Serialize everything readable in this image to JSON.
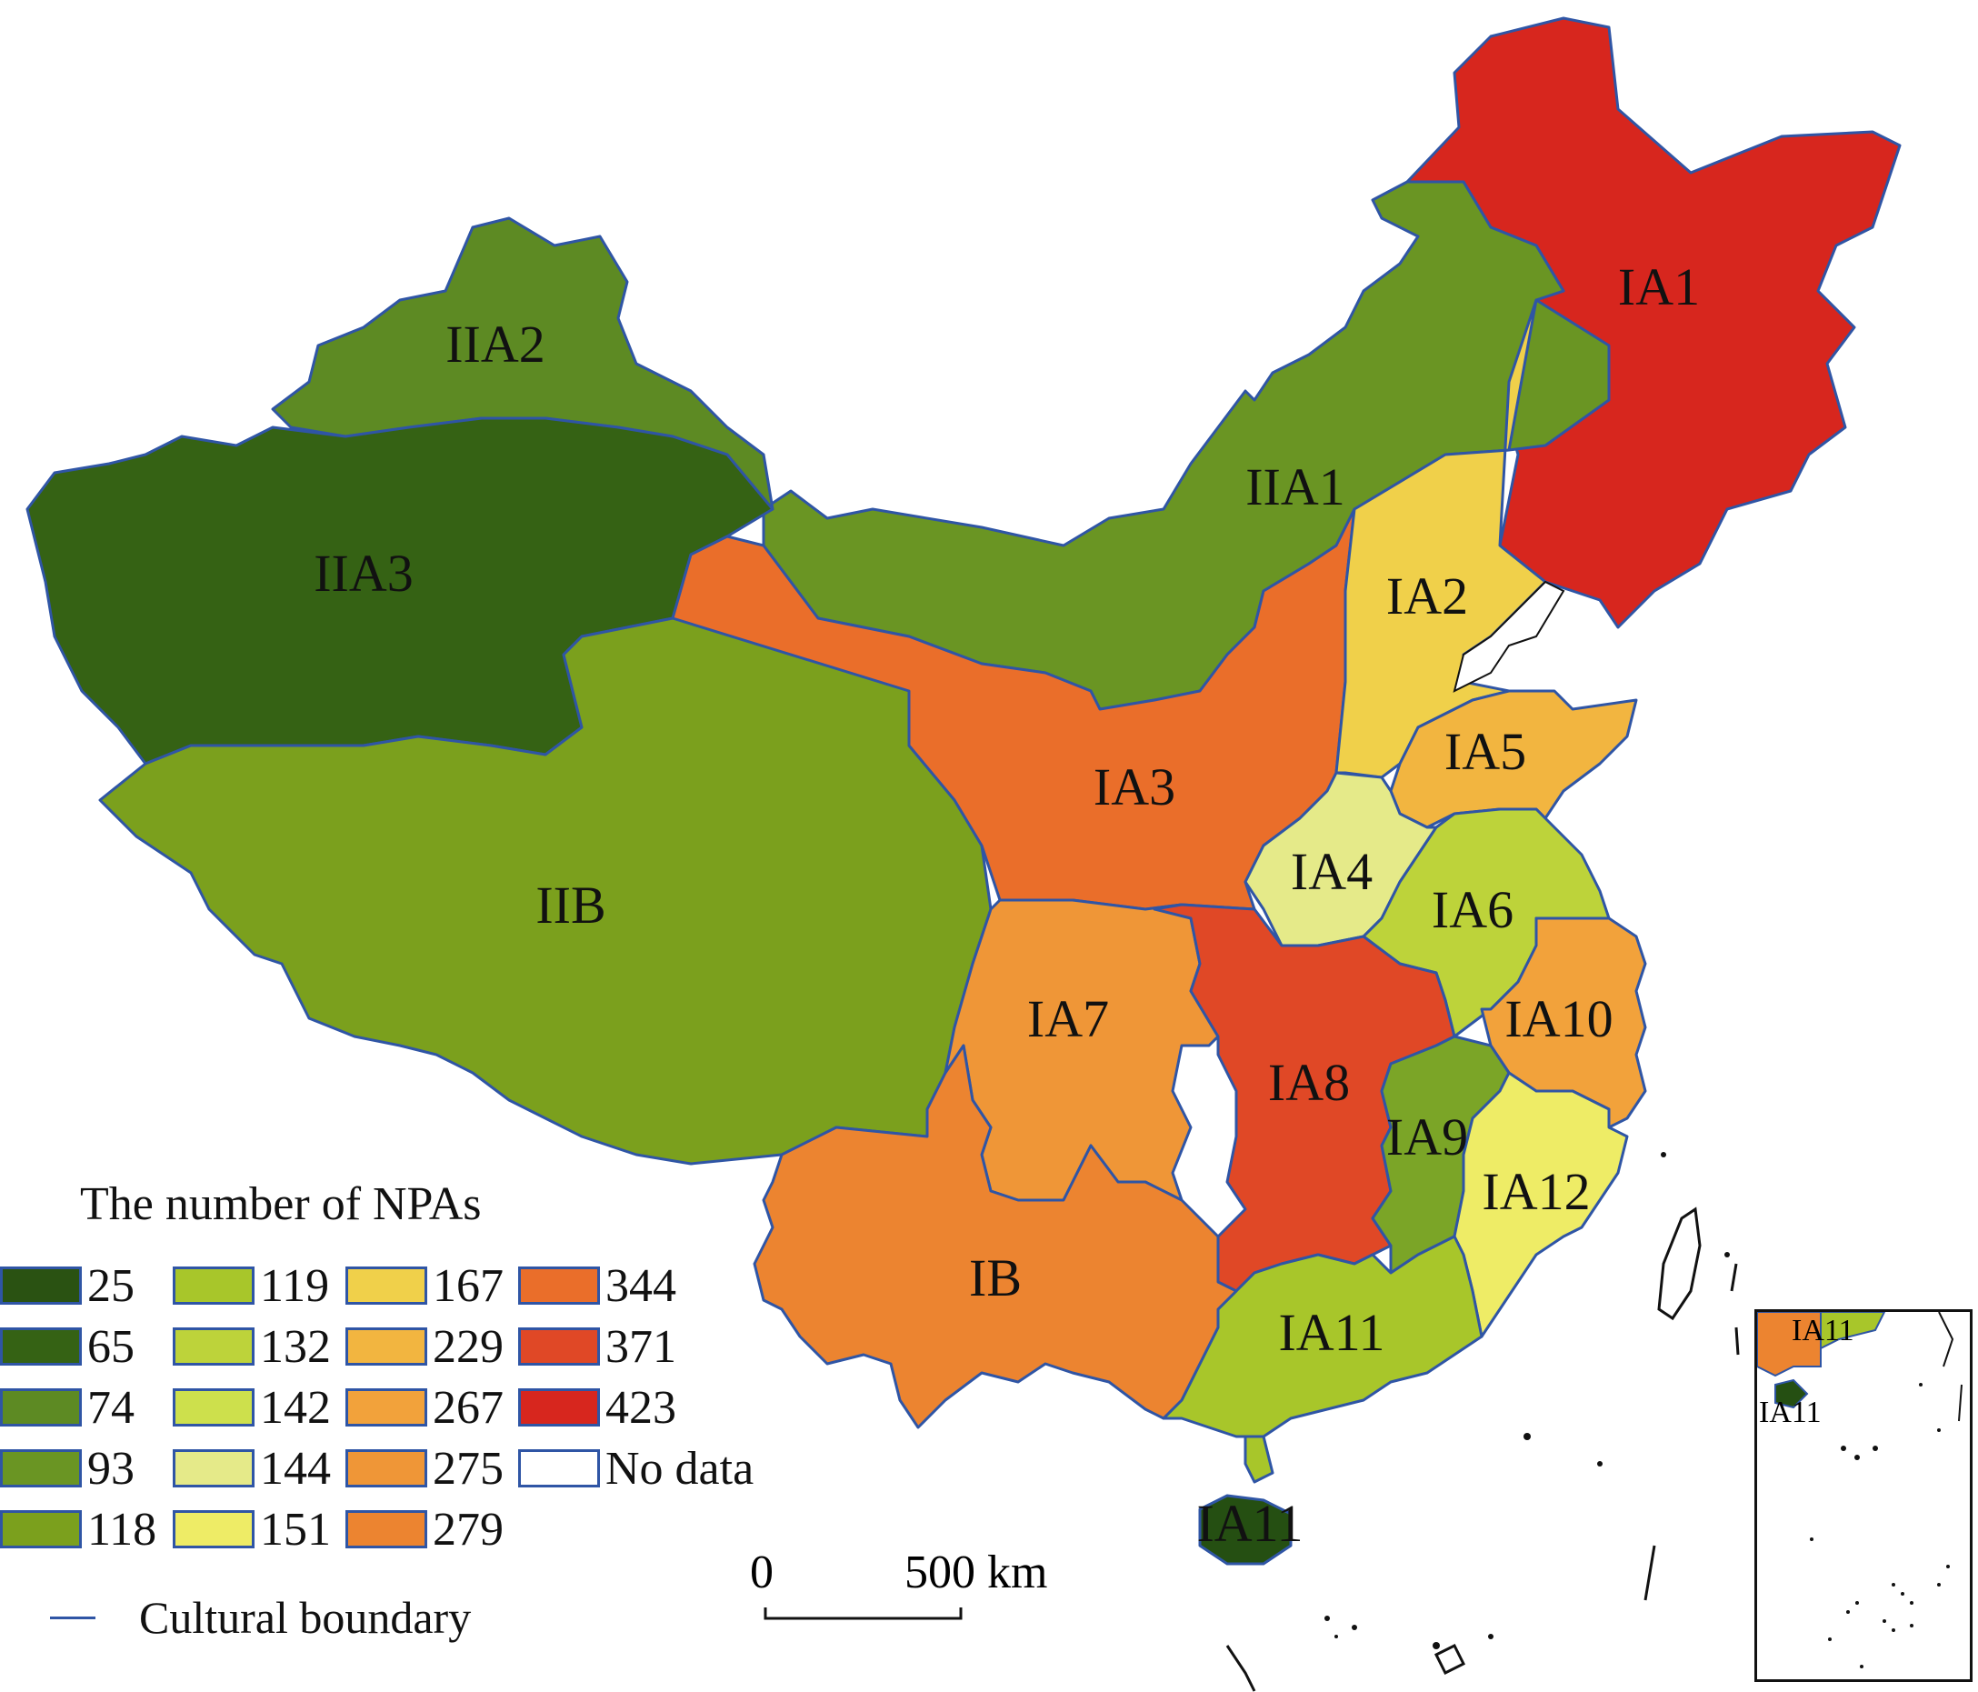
{
  "map": {
    "regions": [
      {
        "id": "IA1",
        "label": "IA1",
        "npas": 423,
        "color": "#d7261e"
      },
      {
        "id": "IA2",
        "label": "IA2",
        "npas": 167,
        "color": "#f0d04a"
      },
      {
        "id": "IA3",
        "label": "IA3",
        "npas": 344,
        "color": "#ea6e2a"
      },
      {
        "id": "IA4",
        "label": "IA4",
        "npas": 144,
        "color": "#e5ea89"
      },
      {
        "id": "IA5",
        "label": "IA5",
        "npas": 229,
        "color": "#f2b540"
      },
      {
        "id": "IA6",
        "label": "IA6",
        "npas": 132,
        "color": "#bdd33a"
      },
      {
        "id": "IA7",
        "label": "IA7",
        "npas": 275,
        "color": "#ef9637"
      },
      {
        "id": "IA8",
        "label": "IA8",
        "npas": 371,
        "color": "#e04826"
      },
      {
        "id": "IA9",
        "label": "IA9",
        "npas": 118,
        "color": "#7ba527"
      },
      {
        "id": "IA10",
        "label": "IA10",
        "npas": 267,
        "color": "#f2a23b"
      },
      {
        "id": "IA11",
        "label": "IA11",
        "npas": 119,
        "color": "#a8c62a"
      },
      {
        "id": "IA12",
        "label": "IA12",
        "npas": 151,
        "color": "#eeec66"
      },
      {
        "id": "IB",
        "label": "IB",
        "npas": 279,
        "color": "#ec8430"
      },
      {
        "id": "IIA1",
        "label": "IIA1",
        "npas": 93,
        "color": "#6a9523"
      },
      {
        "id": "IIA2",
        "label": "IIA2",
        "npas": 74,
        "color": "#5d8a23"
      },
      {
        "id": "IIA3",
        "label": "IIA3",
        "npas": 65,
        "color": "#356214"
      },
      {
        "id": "IIB",
        "label": "IIB",
        "npas": 118,
        "color": "#7ba01d"
      },
      {
        "id": "IA11-hainan",
        "label": "IA11",
        "npas": 25,
        "color": "#254f12"
      }
    ]
  },
  "legend": {
    "title": "The number of NPAs",
    "items": [
      {
        "label": "25",
        "color": "#2a5212"
      },
      {
        "label": "65",
        "color": "#356214"
      },
      {
        "label": "74",
        "color": "#5d8a23"
      },
      {
        "label": "93",
        "color": "#6a9523"
      },
      {
        "label": "118",
        "color": "#7ba01d"
      },
      {
        "label": "119",
        "color": "#a8c62a"
      },
      {
        "label": "132",
        "color": "#bdd33a"
      },
      {
        "label": "142",
        "color": "#cde04c"
      },
      {
        "label": "144",
        "color": "#e5ea89"
      },
      {
        "label": "151",
        "color": "#eeec66"
      },
      {
        "label": "167",
        "color": "#f0d04a"
      },
      {
        "label": "229",
        "color": "#f2b540"
      },
      {
        "label": "267",
        "color": "#f2a23b"
      },
      {
        "label": "275",
        "color": "#ef9637"
      },
      {
        "label": "279",
        "color": "#ec8430"
      },
      {
        "label": "344",
        "color": "#ea6e2a"
      },
      {
        "label": "371",
        "color": "#e04826"
      },
      {
        "label": "423",
        "color": "#d7261e"
      },
      {
        "label": "No data",
        "color": "#ffffff"
      }
    ],
    "boundary_label": "Cultural boundary",
    "boundary_color": "#2f55a5"
  },
  "scale": {
    "zero": "0",
    "distance": "500 km"
  },
  "inset": {
    "labels": [
      "IA11",
      "IA11"
    ]
  }
}
